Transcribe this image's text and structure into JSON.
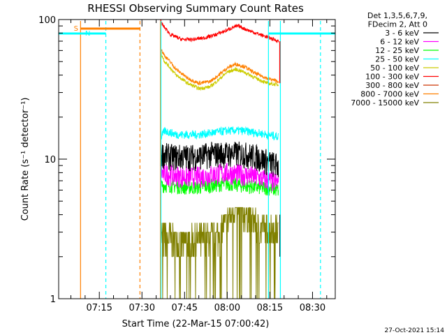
{
  "chart_data": {
    "type": "line",
    "title": "RHESSI Observing Summary Count Rates",
    "xlabel": "Start Time (22-Mar-15 07:00:42)",
    "ylabel": "Count Rate (s⁻¹ detector⁻¹)",
    "y_scale": "log",
    "ylim": [
      1,
      100
    ],
    "x_units": "minutes after 07:00:00",
    "xlim": [
      0.7,
      98
    ],
    "x_ticks": [
      {
        "x": 15,
        "label": "07:15"
      },
      {
        "x": 30,
        "label": "07:30"
      },
      {
        "x": 45,
        "label": "07:45"
      },
      {
        "x": 60,
        "label": "08:00"
      },
      {
        "x": 75,
        "label": "08:15"
      },
      {
        "x": 90,
        "label": "08:30"
      }
    ],
    "y_ticks": [
      {
        "y": 1,
        "label": "1"
      },
      {
        "y": 10,
        "label": "10"
      },
      {
        "y": 100,
        "label": "100"
      }
    ],
    "legend_header": [
      "Det 1,3,5,6,7,9,",
      "FDecim 2, Att 0"
    ],
    "legend_placement": "right",
    "data_start": 36.5,
    "data_end": 78.5,
    "series": [
      {
        "name": "3 - 6 keV",
        "color": "#000000",
        "x": [
          36.5,
          40,
          45,
          50,
          55,
          60,
          65,
          70,
          75,
          78
        ],
        "y": [
          11,
          10.5,
          10.5,
          10.5,
          11,
          11,
          11,
          10.5,
          9.5,
          9
        ]
      },
      {
        "name": "6 - 12 keV",
        "color": "#ff00ff",
        "x": [
          36.5,
          40,
          45,
          50,
          55,
          60,
          65,
          70,
          75,
          78
        ],
        "y": [
          8,
          7.8,
          7.5,
          7.5,
          7.8,
          8,
          7.8,
          7.5,
          7,
          6.8
        ]
      },
      {
        "name": "12 - 25 keV",
        "color": "#00ff00",
        "x": [
          36.5,
          40,
          45,
          50,
          55,
          60,
          65,
          70,
          75,
          78
        ],
        "y": [
          6.5,
          6.5,
          6.3,
          6.3,
          6.5,
          6.7,
          6.5,
          6.3,
          6.2,
          6
        ]
      },
      {
        "name": "25 - 50 keV",
        "color": "#00ffff",
        "x": [
          36.5,
          38,
          42,
          46,
          50,
          55,
          60,
          65,
          70,
          74,
          78
        ],
        "y": [
          14,
          16,
          15,
          15,
          15,
          15.5,
          16,
          16,
          15.5,
          15,
          14.5
        ]
      },
      {
        "name": "50 - 100 keV",
        "color": "#cccc00",
        "x": [
          36.5,
          38,
          42,
          46,
          50,
          54,
          57,
          60,
          63,
          66,
          70,
          74,
          78
        ],
        "y": [
          58,
          50,
          40,
          35,
          32,
          33,
          37,
          42,
          44,
          42,
          38,
          35,
          34
        ]
      },
      {
        "name": "100 - 300 keV",
        "color": "#ff0000",
        "x": [
          36.5,
          37.5,
          40,
          44,
          48,
          52,
          56,
          60,
          62,
          64,
          66,
          70,
          74,
          78
        ],
        "y": [
          98,
          90,
          78,
          72,
          72,
          74,
          78,
          84,
          88,
          90,
          86,
          80,
          75,
          70
        ]
      },
      {
        "name": "300 - 800 keV",
        "color": "#cc3300",
        "x": [],
        "y": []
      },
      {
        "name": "800 - 7000 keV",
        "color": "#ff8000",
        "x": [
          36.5,
          38,
          42,
          46,
          50,
          54,
          57,
          60,
          63,
          66,
          70,
          74,
          78
        ],
        "y": [
          62,
          55,
          44,
          38,
          35,
          36,
          40,
          45,
          48,
          46,
          41,
          38,
          36
        ]
      },
      {
        "name": "7000 - 15000 keV",
        "color": "#808000",
        "x": [
          36.5,
          40,
          44,
          48,
          52,
          56,
          60,
          62,
          64,
          66,
          68,
          70,
          72,
          74,
          76,
          78
        ],
        "y": [
          2.8,
          2.7,
          2.5,
          2.6,
          2.7,
          2.8,
          3.5,
          4.3,
          4.5,
          4.3,
          3.8,
          3.4,
          3.3,
          3.2,
          3.2,
          3.0
        ]
      }
    ],
    "annotations": [
      {
        "text": "S",
        "color": "#ff8000"
      },
      {
        "text": "N",
        "color": "#00ffff"
      }
    ]
  },
  "footer": {
    "timestamp": "27-Oct-2021 15:14"
  }
}
